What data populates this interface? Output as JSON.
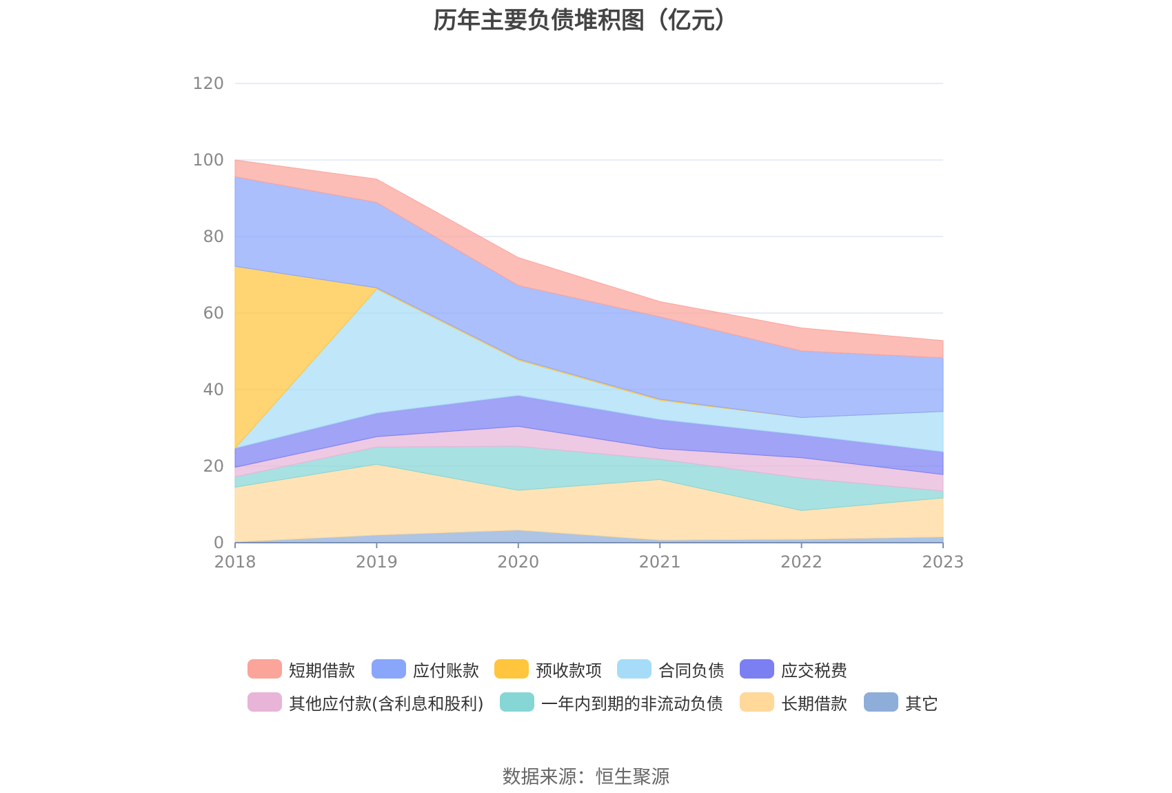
{
  "title": "历年主要负债堆积图（亿元）",
  "source": "数据来源：恒生聚源",
  "chart_data": {
    "type": "area",
    "stacked": true,
    "x": [
      "2018",
      "2019",
      "2020",
      "2021",
      "2022",
      "2023"
    ],
    "ylim": [
      0,
      120
    ],
    "yticks": [
      "0",
      "20",
      "40",
      "60",
      "80",
      "100",
      "120"
    ],
    "grid": true,
    "legend_position": "bottom",
    "series": [
      {
        "name": "其它",
        "color": "#8eadd9",
        "values": [
          0.2,
          2.0,
          3.3,
          0.7,
          0.9,
          1.5
        ]
      },
      {
        "name": "长期借款",
        "color": "#ffd89a",
        "values": [
          14.3,
          18.5,
          10.4,
          15.8,
          7.5,
          10.2
        ]
      },
      {
        "name": "一年内到期的非流动负债",
        "color": "#86d6d6",
        "values": [
          2.7,
          4.5,
          11.5,
          5.3,
          8.5,
          1.8
        ]
      },
      {
        "name": "其他应付款(含利息和股利)",
        "color": "#e8b4d8",
        "values": [
          2.5,
          2.7,
          5.2,
          2.8,
          5.3,
          4.3
        ]
      },
      {
        "name": "应交税费",
        "color": "#7b7ff2",
        "values": [
          5.0,
          6.2,
          8.1,
          7.6,
          6.0,
          6.0
        ]
      },
      {
        "name": "合同负债",
        "color": "#a6dcf7",
        "values": [
          0.0,
          32.4,
          9.2,
          5.0,
          4.5,
          10.5
        ]
      },
      {
        "name": "预收款项",
        "color": "#ffc53d",
        "values": [
          47.5,
          0.3,
          0.3,
          0.3,
          0.0,
          0.0
        ]
      },
      {
        "name": "应付账款",
        "color": "#8aa6fb",
        "values": [
          23.4,
          22.3,
          19.2,
          21.5,
          17.4,
          14.0
        ]
      },
      {
        "name": "短期借款",
        "color": "#fba49a",
        "values": [
          4.4,
          6.1,
          7.3,
          4.0,
          6.0,
          4.5
        ]
      }
    ],
    "legend_order": [
      "短期借款",
      "应付账款",
      "预收款项",
      "合同负债",
      "应交税费",
      "其他应付款(含利息和股利)",
      "一年内到期的非流动负债",
      "长期借款",
      "其它"
    ]
  }
}
